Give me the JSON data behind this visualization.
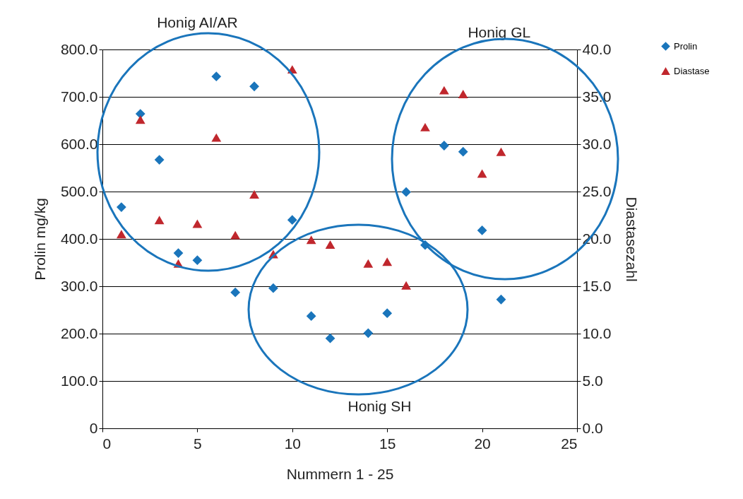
{
  "chart_data": {
    "type": "scatter",
    "xlabel": "Nummern 1 - 25",
    "ylabel": "Prolin mg/kg",
    "y2label": "Diastasezahl",
    "x": [
      1,
      2,
      3,
      4,
      5,
      6,
      7,
      8,
      9,
      10,
      11,
      12,
      14,
      15,
      16,
      17,
      18,
      19,
      20,
      21
    ],
    "series": [
      {
        "name": "Prolin",
        "color": "#1a75bb",
        "marker": "diamond",
        "values": [
          467,
          664,
          567,
          370,
          355,
          743,
          287,
          722,
          296,
          440,
          237,
          190,
          201,
          243,
          499,
          387,
          597,
          584,
          418,
          272
        ]
      },
      {
        "name": "Diastase",
        "color": "#c0272d",
        "marker": "triangle",
        "axis": "y2",
        "values": [
          20.5,
          32.6,
          22.0,
          17.4,
          21.6,
          30.7,
          20.4,
          24.7,
          18.4,
          37.9,
          19.9,
          19.4,
          17.4,
          17.6,
          15.1,
          31.8,
          35.7,
          35.3,
          26.9,
          29.2
        ]
      }
    ],
    "xlim": [
      0,
      25
    ],
    "xticks": [
      0,
      5,
      10,
      15,
      20,
      25
    ],
    "ylim": [
      0,
      800
    ],
    "yticks": [
      0,
      {
        "value": 100,
        "label": "100.0"
      },
      {
        "value": 200,
        "label": "200.0"
      },
      {
        "value": 300,
        "label": "300.0"
      },
      {
        "value": 400,
        "label": "400.0"
      },
      {
        "value": 500,
        "label": "500.0"
      },
      {
        "value": 600,
        "label": "600.0"
      },
      {
        "value": 700,
        "label": "700.0"
      },
      {
        "value": 800,
        "label": "800.0"
      }
    ],
    "y2lim": [
      0,
      40
    ],
    "y2ticks": [
      {
        "value": 0,
        "label": "0.0"
      },
      {
        "value": 5,
        "label": "5.0"
      },
      {
        "value": 10,
        "label": "10.0"
      },
      {
        "value": 15,
        "label": "15.0"
      },
      {
        "value": 20,
        "label": "20.0"
      },
      {
        "value": 25,
        "label": "25.0"
      },
      {
        "value": 30,
        "label": "30.0"
      },
      {
        "value": 35,
        "label": "35.0"
      },
      {
        "value": 40,
        "label": "40.0"
      }
    ],
    "grid": "y",
    "legend": "top right",
    "annotations": [
      "Honig AI/AR",
      "Honig GL",
      "Honig SH"
    ]
  }
}
